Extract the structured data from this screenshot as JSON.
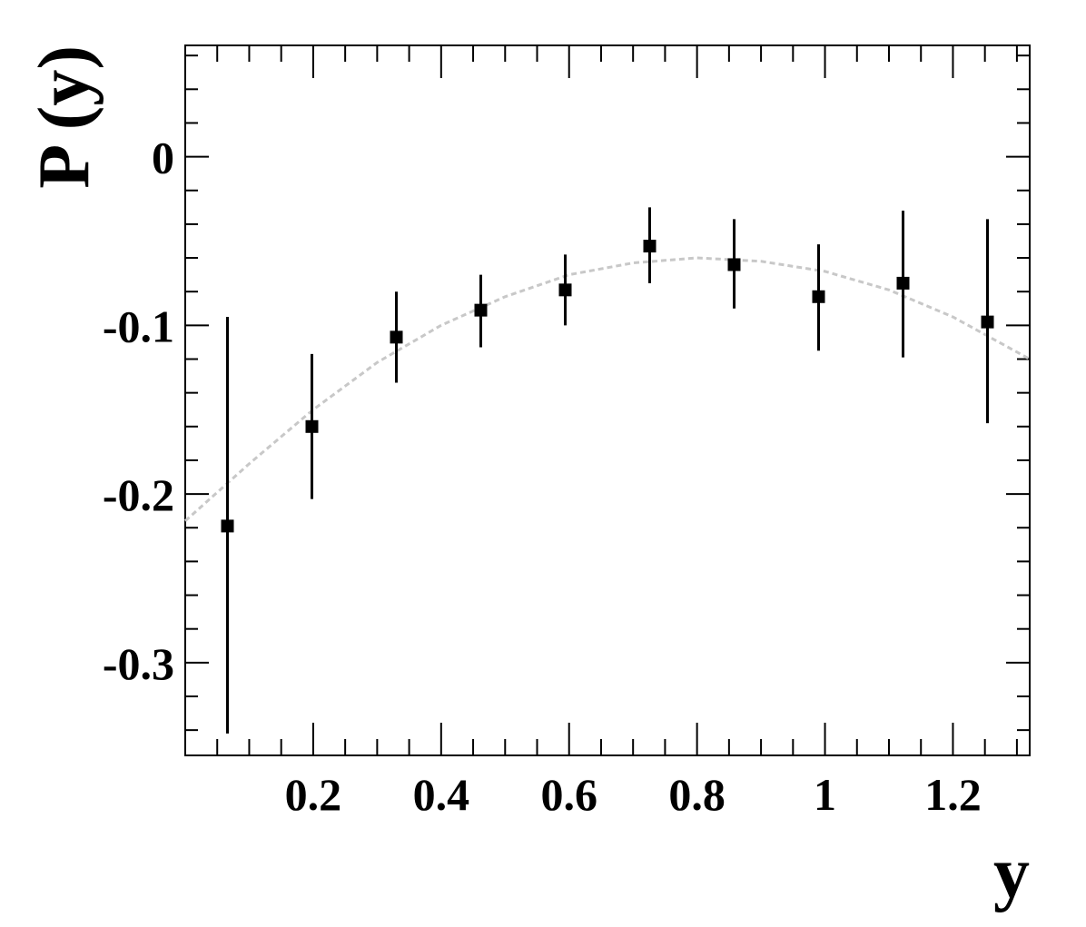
{
  "chart_data": {
    "type": "scatter",
    "xlabel": "y",
    "ylabel": "P (y)",
    "xlim": [
      0.0,
      1.32
    ],
    "ylim": [
      -0.355,
      0.066
    ],
    "grid": false,
    "x_ticks": [
      {
        "value": 0.2,
        "label": "0.2"
      },
      {
        "value": 0.4,
        "label": "0.4"
      },
      {
        "value": 0.6,
        "label": "0.6"
      },
      {
        "value": 0.8,
        "label": "0.8"
      },
      {
        "value": 1.0,
        "label": "1"
      },
      {
        "value": 1.2,
        "label": "1.2"
      }
    ],
    "y_ticks": [
      {
        "value": 0.0,
        "label": "0"
      },
      {
        "value": -0.1,
        "label": "-0.1"
      },
      {
        "value": -0.2,
        "label": "-0.2"
      },
      {
        "value": -0.3,
        "label": "-0.3"
      }
    ],
    "series": [
      {
        "marker": "square",
        "color": "#000000",
        "x": [
          0.066,
          0.198,
          0.33,
          0.462,
          0.594,
          0.726,
          0.858,
          0.99,
          1.122,
          1.254
        ],
        "y": [
          -0.219,
          -0.16,
          -0.107,
          -0.091,
          -0.079,
          -0.053,
          -0.064,
          -0.083,
          -0.075,
          -0.098
        ],
        "err_low": [
          0.123,
          0.043,
          0.027,
          0.022,
          0.021,
          0.022,
          0.026,
          0.032,
          0.044,
          0.06
        ],
        "err_high": [
          0.124,
          0.043,
          0.027,
          0.021,
          0.021,
          0.023,
          0.027,
          0.031,
          0.043,
          0.061
        ]
      }
    ],
    "fit_curve": {
      "style": "dashed",
      "color": "#c8c8c8",
      "x": [
        0.0,
        0.1,
        0.2,
        0.3,
        0.4,
        0.5,
        0.6,
        0.7,
        0.8,
        0.9,
        1.0,
        1.1,
        1.2,
        1.32
      ],
      "y": [
        -0.216,
        -0.182,
        -0.15,
        -0.122,
        -0.1,
        -0.083,
        -0.07,
        -0.063,
        -0.06,
        -0.062,
        -0.068,
        -0.079,
        -0.095,
        -0.12
      ]
    }
  }
}
